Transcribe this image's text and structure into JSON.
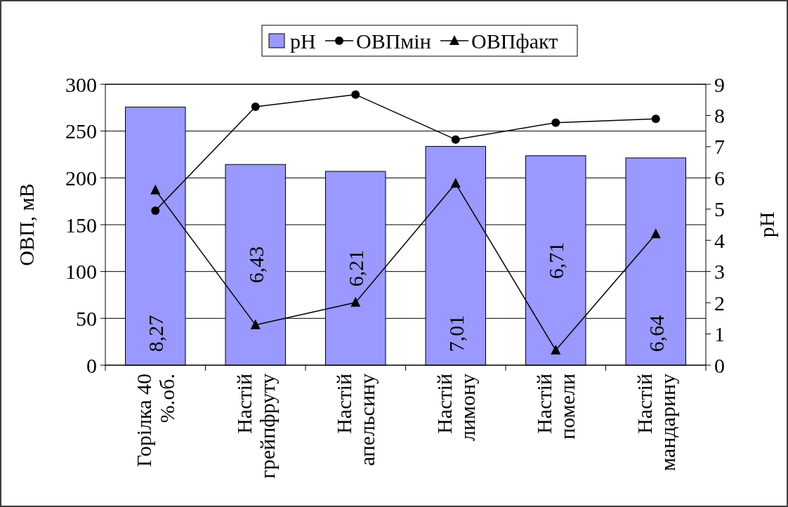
{
  "chart_data": {
    "type": "bar",
    "categories": [
      "Горілка 40 %.об.",
      "Настій грейпфруту",
      "Настій апельсину",
      "Настій лимону",
      "Настій помели",
      "Настій мандарину"
    ],
    "ylabel": "ОВП, мВ",
    "y2label": "pH",
    "ylim": [
      0,
      300
    ],
    "yticks": [
      0,
      50,
      100,
      150,
      200,
      250,
      300
    ],
    "y2lim": [
      0,
      9
    ],
    "y2ticks": [
      0,
      1,
      2,
      3,
      4,
      5,
      6,
      7,
      8,
      9
    ],
    "grid": "y",
    "legend": "top",
    "series": [
      {
        "name": "pH",
        "axis": "y2",
        "color": "#9999ff",
        "values": [
          8.27,
          6.43,
          6.21,
          7.01,
          6.71,
          6.64
        ],
        "value_labels": [
          "8,27",
          "6,43",
          "6,21",
          "7,01",
          "6,71",
          "6,64"
        ]
      },
      {
        "name": "ОВПмін",
        "type": "line",
        "color": "#000000",
        "marker": "circle",
        "values": [
          165,
          276,
          289,
          241,
          259,
          263
        ]
      },
      {
        "name": "ОВПфакт",
        "type": "line",
        "color": "#000000",
        "marker": "triangle",
        "values": [
          187,
          43,
          67,
          194,
          16,
          140
        ]
      }
    ]
  }
}
